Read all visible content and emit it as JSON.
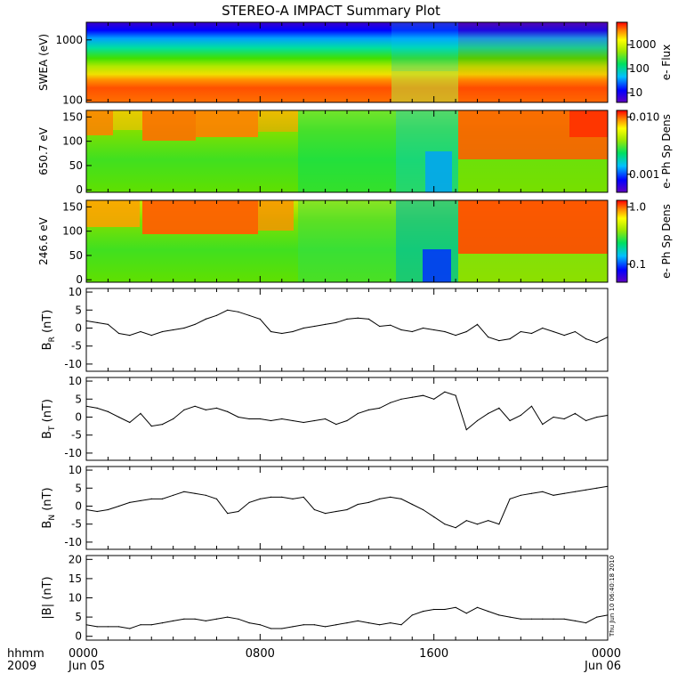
{
  "title": "STEREO-A IMPACT Summary Plot",
  "x_axis": {
    "row1_prefix": "hhmm",
    "row2_prefix": "2009",
    "ticks": [
      {
        "hours": 0,
        "label": "0000",
        "sublabel": "Jun 05"
      },
      {
        "hours": 8,
        "label": "0800",
        "sublabel": ""
      },
      {
        "hours": 16,
        "label": "1600",
        "sublabel": ""
      },
      {
        "hours": 24,
        "label": "0000",
        "sublabel": "Jun 06"
      }
    ]
  },
  "timestamp": "Thu Jun 10 06:40:18 2010",
  "spectrograms": [
    {
      "id": "swea",
      "ylabel": "SWEA (eV)",
      "cbar_label": "e- Flux",
      "yticks": [
        "1000",
        "100"
      ],
      "cbar_ticks": [
        "1000",
        "100",
        "10"
      ]
    },
    {
      "id": "pad650",
      "ylabel": "650.7 eV",
      "cbar_label": "e- Ph Sp Dens",
      "yticks": [
        "150",
        "100",
        "50",
        "0"
      ],
      "cbar_ticks": [
        "0.010",
        "0.001"
      ]
    },
    {
      "id": "pad246",
      "ylabel": "246.6 eV",
      "cbar_label": "e- Ph Sp Dens",
      "yticks": [
        "150",
        "100",
        "50",
        "0"
      ],
      "cbar_ticks": [
        "1.0",
        "0.1"
      ]
    }
  ],
  "chart_data": [
    {
      "type": "line",
      "id": "br",
      "ylabel_main": "B",
      "ylabel_sub": "R",
      "ylabel_unit": " (nT)",
      "ylim": [
        -12,
        11
      ],
      "yticks": [
        "10",
        "5",
        "0",
        "-5",
        "-10"
      ],
      "x": [
        0,
        0.5,
        1,
        1.5,
        2,
        2.5,
        3,
        3.5,
        4,
        4.5,
        5,
        5.5,
        6,
        6.5,
        7,
        7.5,
        8,
        8.5,
        9,
        9.5,
        10,
        10.5,
        11,
        11.5,
        12,
        12.5,
        13,
        13.5,
        14,
        14.5,
        15,
        15.5,
        16,
        16.5,
        17,
        17.5,
        18,
        18.5,
        19,
        19.5,
        20,
        20.5,
        21,
        21.5,
        22,
        22.5,
        23,
        23.5,
        24
      ],
      "y": [
        2,
        1.5,
        1,
        -1.5,
        -2,
        -1,
        -2,
        -1,
        -0.5,
        0,
        1,
        2.5,
        3.5,
        5,
        4.5,
        3.5,
        2.5,
        -1,
        -1.5,
        -1,
        0,
        0.5,
        1,
        1.5,
        2.5,
        2.8,
        2.5,
        0.5,
        0.8,
        -0.5,
        -1,
        0,
        -0.5,
        -1,
        -2,
        -1,
        1,
        -2.5,
        -3.5,
        -3,
        -1,
        -1.5,
        0,
        -1,
        -2,
        -1,
        -3,
        -4,
        -2.5
      ]
    },
    {
      "type": "line",
      "id": "bt",
      "ylabel_main": "B",
      "ylabel_sub": "T",
      "ylabel_unit": " (nT)",
      "ylim": [
        -12,
        11
      ],
      "yticks": [
        "10",
        "5",
        "0",
        "-5",
        "-10"
      ],
      "x": [
        0,
        0.5,
        1,
        1.5,
        2,
        2.5,
        3,
        3.5,
        4,
        4.5,
        5,
        5.5,
        6,
        6.5,
        7,
        7.5,
        8,
        8.5,
        9,
        9.5,
        10,
        10.5,
        11,
        11.5,
        12,
        12.5,
        13,
        13.5,
        14,
        14.5,
        15,
        15.5,
        16,
        16.5,
        17,
        17.5,
        18,
        18.5,
        19,
        19.5,
        20,
        20.5,
        21,
        21.5,
        22,
        22.5,
        23,
        23.5,
        24
      ],
      "y": [
        3,
        2.5,
        1.5,
        0,
        -1.5,
        1,
        -2.5,
        -2,
        -0.5,
        2,
        3,
        2,
        2.5,
        1.5,
        0,
        -0.5,
        -0.5,
        -1,
        -0.5,
        -1,
        -1.5,
        -1,
        -0.5,
        -2,
        -1,
        1,
        2,
        2.5,
        4,
        5,
        5.5,
        6,
        5,
        7,
        6,
        -3.5,
        -1,
        1,
        2.5,
        -1,
        0.5,
        3,
        -2,
        0,
        -0.5,
        1,
        -1,
        0,
        0.5
      ]
    },
    {
      "type": "line",
      "id": "bn",
      "ylabel_main": "B",
      "ylabel_sub": "N",
      "ylabel_unit": " (nT)",
      "ylim": [
        -12,
        11
      ],
      "yticks": [
        "10",
        "5",
        "0",
        "-5",
        "-10"
      ],
      "x": [
        0,
        0.5,
        1,
        1.5,
        2,
        2.5,
        3,
        3.5,
        4,
        4.5,
        5,
        5.5,
        6,
        6.5,
        7,
        7.5,
        8,
        8.5,
        9,
        9.5,
        10,
        10.5,
        11,
        11.5,
        12,
        12.5,
        13,
        13.5,
        14,
        14.5,
        15,
        15.5,
        16,
        16.5,
        17,
        17.5,
        18,
        18.5,
        19,
        19.5,
        20,
        20.5,
        21,
        21.5,
        22,
        22.5,
        23,
        23.5,
        24
      ],
      "y": [
        -1,
        -1.5,
        -1,
        0,
        1,
        1.5,
        2,
        2,
        3,
        4,
        3.5,
        3,
        2,
        -2,
        -1.5,
        1,
        2,
        2.5,
        2.5,
        2,
        2.5,
        -1,
        -2,
        -1.5,
        -1,
        0.5,
        1,
        2,
        2.5,
        2,
        0.5,
        -1,
        -3,
        -5,
        -6,
        -4,
        -5,
        -4,
        -5,
        2,
        3,
        3.5,
        4,
        3,
        3.5,
        4,
        4.5,
        5,
        5.5
      ]
    },
    {
      "type": "line",
      "id": "bmag",
      "ylabel_main": "|B|",
      "ylabel_sub": "",
      "ylabel_unit": " (nT)",
      "ylim": [
        -1,
        21
      ],
      "yticks": [
        "20",
        "15",
        "10",
        "5",
        "0"
      ],
      "x": [
        0,
        0.5,
        1,
        1.5,
        2,
        2.5,
        3,
        3.5,
        4,
        4.5,
        5,
        5.5,
        6,
        6.5,
        7,
        7.5,
        8,
        8.5,
        9,
        9.5,
        10,
        10.5,
        11,
        11.5,
        12,
        12.5,
        13,
        13.5,
        14,
        14.5,
        15,
        15.5,
        16,
        16.5,
        17,
        17.5,
        18,
        18.5,
        19,
        19.5,
        20,
        20.5,
        21,
        21.5,
        22,
        22.5,
        23,
        23.5,
        24
      ],
      "y": [
        3,
        2.5,
        2.5,
        2.5,
        2,
        3,
        3,
        3.5,
        4,
        4.5,
        4.5,
        4,
        4.5,
        5,
        4.5,
        3.5,
        3,
        2,
        2,
        2.5,
        3,
        3,
        2.5,
        3,
        3.5,
        4,
        3.5,
        3,
        3.5,
        3,
        5.5,
        6.5,
        7,
        7,
        7.5,
        6,
        7.5,
        6.5,
        5.5,
        5,
        4.5,
        4.5,
        4.5,
        4.5,
        4.5,
        4,
        3.5,
        5,
        5.5
      ]
    }
  ]
}
